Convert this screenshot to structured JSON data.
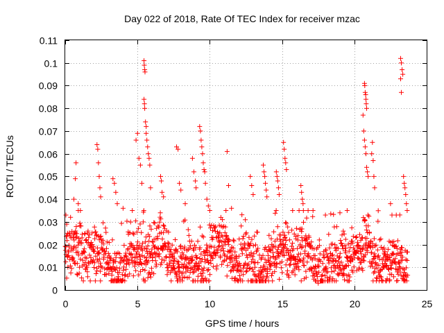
{
  "chart_data": {
    "type": "scatter",
    "title": "Day 022 of 2018, Rate Of TEC Index for receiver mzac",
    "xlabel": "GPS time / hours",
    "ylabel": "ROTI / TECUs",
    "xlim": [
      0,
      25
    ],
    "ylim": [
      0,
      0.11
    ],
    "x_ticks": [
      0,
      5,
      10,
      15,
      20,
      25
    ],
    "x_tick_labels": [
      "0",
      "5",
      "10",
      "15",
      "20",
      "25"
    ],
    "y_ticks": [
      0,
      0.01,
      0.02,
      0.03,
      0.04,
      0.05,
      0.06,
      0.07,
      0.08,
      0.09,
      0.1,
      0.11
    ],
    "y_tick_labels": [
      "0",
      "0.01",
      "0.02",
      "0.03",
      "0.04",
      "0.05",
      "0.06",
      "0.07",
      "0.08",
      "0.09",
      "0.1",
      "0.11"
    ],
    "grid": true,
    "marker": "+",
    "marker_color": "#ff0000",
    "series": [
      {
        "name": "ROTI",
        "note": "dense background cloud of ROTI values 0.004-0.035 TECU/min from 0 to 23.7 h; listed points are visible peaks/outliers",
        "background_band": {
          "x_start": 0.0,
          "x_end": 23.7,
          "y_min": 0.004,
          "y_max": 0.035
        },
        "points": [
          [
            0.05,
            0.033
          ],
          [
            0.1,
            0.029
          ],
          [
            0.6,
            0.04
          ],
          [
            0.7,
            0.049
          ],
          [
            0.75,
            0.056
          ],
          [
            0.9,
            0.038
          ],
          [
            2.2,
            0.064
          ],
          [
            2.25,
            0.062
          ],
          [
            2.3,
            0.056
          ],
          [
            2.35,
            0.05
          ],
          [
            2.4,
            0.045
          ],
          [
            2.45,
            0.041
          ],
          [
            3.3,
            0.049
          ],
          [
            3.4,
            0.047
          ],
          [
            3.5,
            0.043
          ],
          [
            3.6,
            0.038
          ],
          [
            4.0,
            0.036
          ],
          [
            4.9,
            0.066
          ],
          [
            5.0,
            0.069
          ],
          [
            5.1,
            0.058
          ],
          [
            5.2,
            0.055
          ],
          [
            5.3,
            0.047
          ],
          [
            5.45,
            0.101
          ],
          [
            5.47,
            0.099
          ],
          [
            5.5,
            0.097
          ],
          [
            5.52,
            0.096
          ],
          [
            5.45,
            0.084
          ],
          [
            5.48,
            0.082
          ],
          [
            5.5,
            0.08
          ],
          [
            5.55,
            0.074
          ],
          [
            5.6,
            0.072
          ],
          [
            5.6,
            0.069
          ],
          [
            5.65,
            0.066
          ],
          [
            5.7,
            0.063
          ],
          [
            5.75,
            0.06
          ],
          [
            5.8,
            0.058
          ],
          [
            5.85,
            0.055
          ],
          [
            5.9,
            0.045
          ],
          [
            6.6,
            0.05
          ],
          [
            6.65,
            0.048
          ],
          [
            6.7,
            0.043
          ],
          [
            6.8,
            0.041
          ],
          [
            7.7,
            0.063
          ],
          [
            7.8,
            0.062
          ],
          [
            7.9,
            0.047
          ],
          [
            8.0,
            0.044
          ],
          [
            8.3,
            0.038
          ],
          [
            8.8,
            0.058
          ],
          [
            8.9,
            0.052
          ],
          [
            9.0,
            0.048
          ],
          [
            9.05,
            0.045
          ],
          [
            9.3,
            0.072
          ],
          [
            9.35,
            0.07
          ],
          [
            9.4,
            0.066
          ],
          [
            9.45,
            0.063
          ],
          [
            9.5,
            0.06
          ],
          [
            9.55,
            0.056
          ],
          [
            9.6,
            0.053
          ],
          [
            9.65,
            0.052
          ],
          [
            9.7,
            0.047
          ],
          [
            9.8,
            0.04
          ],
          [
            9.9,
            0.037
          ],
          [
            10.0,
            0.035
          ],
          [
            11.2,
            0.061
          ],
          [
            11.3,
            0.046
          ],
          [
            11.5,
            0.036
          ],
          [
            12.8,
            0.05
          ],
          [
            12.9,
            0.046
          ],
          [
            13.0,
            0.042
          ],
          [
            13.7,
            0.055
          ],
          [
            13.75,
            0.052
          ],
          [
            13.8,
            0.05
          ],
          [
            13.85,
            0.047
          ],
          [
            13.9,
            0.044
          ],
          [
            13.95,
            0.041
          ],
          [
            14.6,
            0.052
          ],
          [
            14.65,
            0.05
          ],
          [
            14.7,
            0.048
          ],
          [
            14.75,
            0.045
          ],
          [
            14.8,
            0.042
          ],
          [
            15.1,
            0.065
          ],
          [
            15.15,
            0.062
          ],
          [
            15.2,
            0.058
          ],
          [
            15.25,
            0.056
          ],
          [
            15.3,
            0.053
          ],
          [
            16.3,
            0.046
          ],
          [
            16.35,
            0.043
          ],
          [
            16.4,
            0.04
          ],
          [
            16.45,
            0.038
          ],
          [
            16.8,
            0.035
          ],
          [
            17.5,
            0.003
          ],
          [
            18.0,
            0.033
          ],
          [
            19.0,
            0.034
          ],
          [
            19.5,
            0.035
          ],
          [
            20.7,
            0.091
          ],
          [
            20.72,
            0.09
          ],
          [
            20.75,
            0.087
          ],
          [
            20.78,
            0.086
          ],
          [
            20.8,
            0.084
          ],
          [
            20.82,
            0.082
          ],
          [
            20.85,
            0.08
          ],
          [
            20.6,
            0.077
          ],
          [
            20.65,
            0.07
          ],
          [
            20.7,
            0.066
          ],
          [
            20.75,
            0.063
          ],
          [
            20.8,
            0.06
          ],
          [
            20.85,
            0.054
          ],
          [
            20.9,
            0.052
          ],
          [
            20.95,
            0.05
          ],
          [
            21.2,
            0.06
          ],
          [
            21.25,
            0.065
          ],
          [
            21.3,
            0.057
          ],
          [
            21.35,
            0.05
          ],
          [
            21.4,
            0.045
          ],
          [
            22.5,
            0.038
          ],
          [
            22.6,
            0.033
          ],
          [
            22.9,
            0.033
          ],
          [
            23.2,
            0.102
          ],
          [
            23.25,
            0.1
          ],
          [
            23.3,
            0.097
          ],
          [
            23.35,
            0.095
          ],
          [
            23.2,
            0.093
          ],
          [
            23.25,
            0.087
          ],
          [
            23.4,
            0.05
          ],
          [
            23.45,
            0.047
          ],
          [
            23.5,
            0.045
          ],
          [
            23.55,
            0.042
          ],
          [
            23.6,
            0.038
          ],
          [
            23.65,
            0.035
          ]
        ]
      }
    ]
  }
}
